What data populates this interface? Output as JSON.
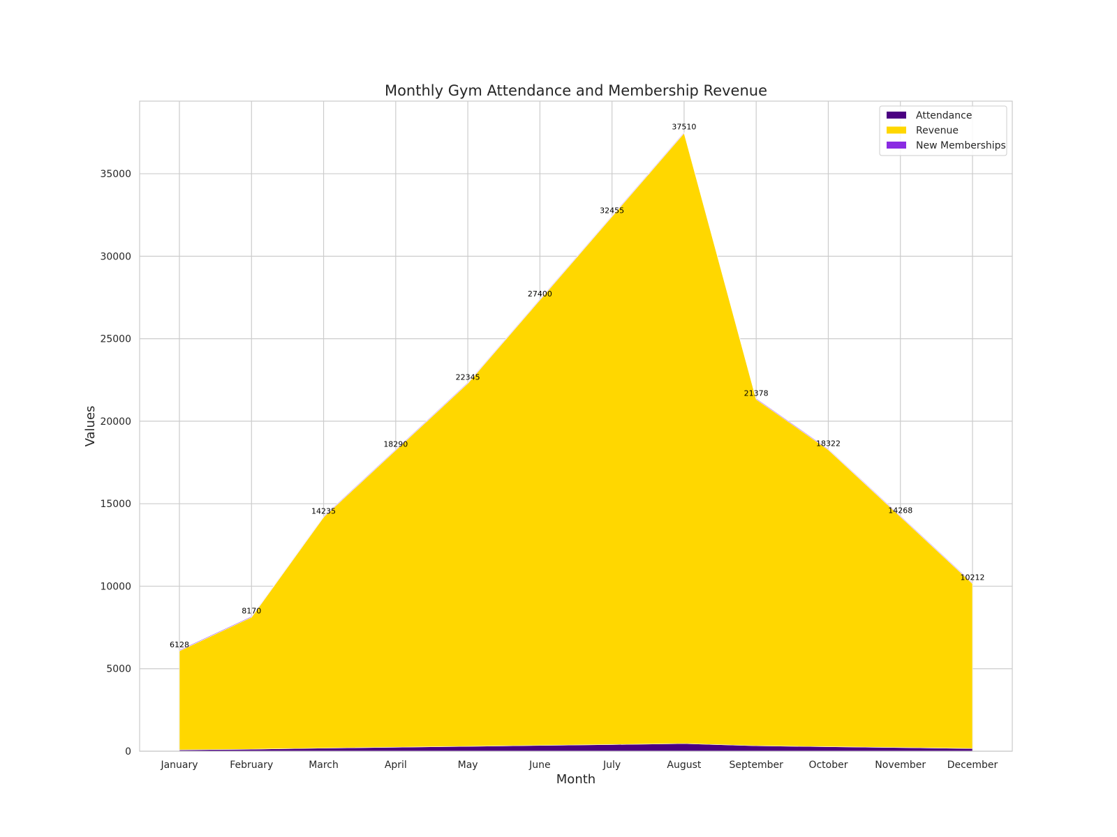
{
  "colors": {
    "attendance": "#4b0082",
    "revenue": "#ffd700",
    "new_memberships": "#8a2be2",
    "grid": "#cccccc",
    "frame": "#cccccc"
  },
  "chart_data": {
    "type": "area",
    "stacked": true,
    "title": "Monthly Gym Attendance and Membership Revenue",
    "xlabel": "Month",
    "ylabel": "Values",
    "categories": [
      "January",
      "February",
      "March",
      "April",
      "May",
      "June",
      "July",
      "August",
      "September",
      "October",
      "November",
      "December"
    ],
    "series": [
      {
        "name": "Attendance",
        "color": "#4b0082",
        "values": [
          80,
          120,
          185,
          240,
          295,
          350,
          405,
          460,
          328,
          272,
          218,
          162
        ]
      },
      {
        "name": "Revenue",
        "color": "#ffd700",
        "values": [
          6000,
          8000,
          14000,
          18000,
          22000,
          27000,
          32000,
          37000,
          21000,
          18000,
          14000,
          10000
        ]
      },
      {
        "name": "New Memberships",
        "color": "#8a2be2",
        "values": [
          48,
          50,
          50,
          50,
          50,
          50,
          50,
          50,
          50,
          50,
          50,
          50
        ]
      }
    ],
    "data_labels": [
      "6128",
      "8170",
      "14235",
      "18290",
      "22345",
      "27400",
      "32455",
      "37510",
      "21378",
      "18322",
      "14268",
      "10212"
    ],
    "yticks": [
      "0",
      "5000",
      "10000",
      "15000",
      "20000",
      "25000",
      "30000",
      "35000"
    ],
    "ylim": [
      0,
      39400
    ],
    "grid": true,
    "legend_position": "top-right"
  }
}
